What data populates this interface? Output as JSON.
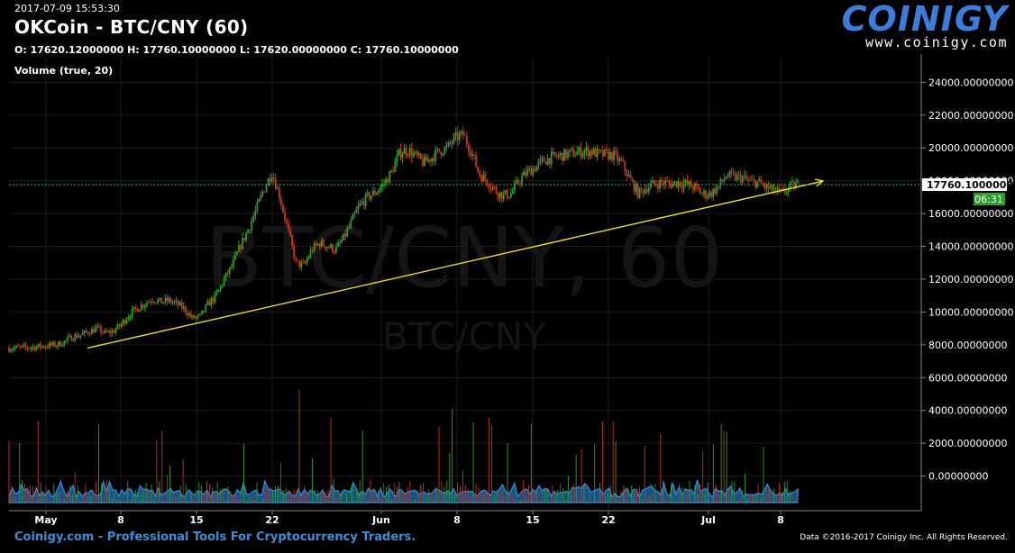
{
  "header": {
    "timestamp": "2017-07-09 15:53:30",
    "title": "OKCoin - BTC/CNY (60)",
    "ohlc": "O: 17620.12000000 H: 17760.10000000 L: 17620.00000000 C: 17760.10000000",
    "volume_label": "Volume (true, 20)"
  },
  "logo": {
    "name": "COINIGY",
    "url": "www.coinigy.com"
  },
  "watermark": {
    "main": "BTC/CNY, 60",
    "sub": "BTC/CNY"
  },
  "footer": {
    "left": "Coinigy.com - Professional Tools For Cryptocurrency Traders.",
    "right": "Data ©2016-2017 Coinigy Inc. All Rights Reserved."
  },
  "colors": {
    "up": "#2e9e2e",
    "down": "#d03020",
    "trendline": "#e8e030",
    "price_line": "#3db34a",
    "volume_fill": "#1f6fb0",
    "grid": "#1c1c1c"
  },
  "chart_data": {
    "type": "candlestick",
    "price_axis": {
      "ticks": [
        "24000.00000000",
        "22000.00000000",
        "20000.00000000",
        "18000.00000000",
        "16000.00000000",
        "14000.00000000",
        "12000.00000000",
        "10000.00000000",
        "8000.00000000",
        "6000.00000000",
        "4000.00000000",
        "2000.00000000",
        "0.00000000"
      ],
      "range": [
        -2000,
        25500
      ]
    },
    "time_axis": {
      "ticks": [
        "May",
        "8",
        "15",
        "22",
        "Jun",
        "8",
        "15",
        "22",
        "Jul",
        "8"
      ]
    },
    "current_price": {
      "label": "17760.10000000",
      "value": 17760.1
    },
    "countdown": "06:31",
    "price_path": [
      [
        0,
        7800
      ],
      [
        2,
        7820
      ],
      [
        4,
        7900
      ],
      [
        6,
        8000
      ],
      [
        7,
        8200
      ],
      [
        8,
        8500
      ],
      [
        9,
        8600
      ],
      [
        10,
        8800
      ],
      [
        11,
        9000
      ],
      [
        12,
        8700
      ],
      [
        13,
        8800
      ],
      [
        14,
        9200
      ],
      [
        15,
        9800
      ],
      [
        16,
        10200
      ],
      [
        17,
        10500
      ],
      [
        18,
        10800
      ],
      [
        19,
        10600
      ],
      [
        20,
        10700
      ],
      [
        21,
        10500
      ],
      [
        22,
        10200
      ],
      [
        23,
        9600
      ],
      [
        24,
        9700
      ],
      [
        25,
        10500
      ],
      [
        26,
        11000
      ],
      [
        27,
        12000
      ],
      [
        28,
        12800
      ],
      [
        29,
        14000
      ],
      [
        30,
        15000
      ],
      [
        31,
        16200
      ],
      [
        32,
        17500
      ],
      [
        33,
        18500
      ],
      [
        34,
        17000
      ],
      [
        35,
        15000
      ],
      [
        36,
        13000
      ],
      [
        37,
        12800
      ],
      [
        38,
        13800
      ],
      [
        39,
        14200
      ],
      [
        40,
        14000
      ],
      [
        41,
        13800
      ],
      [
        42,
        14500
      ],
      [
        43,
        15500
      ],
      [
        44,
        16500
      ],
      [
        45,
        17000
      ],
      [
        46,
        17300
      ],
      [
        47,
        17800
      ],
      [
        48,
        18500
      ],
      [
        49,
        19700
      ],
      [
        50,
        19900
      ],
      [
        51,
        19500
      ],
      [
        52,
        19100
      ],
      [
        53,
        19400
      ],
      [
        54,
        19800
      ],
      [
        55,
        20000
      ],
      [
        56,
        20600
      ],
      [
        57,
        20800
      ],
      [
        58,
        19800
      ],
      [
        59,
        18400
      ],
      [
        60,
        18000
      ],
      [
        61,
        17400
      ],
      [
        62,
        17100
      ],
      [
        63,
        17200
      ],
      [
        64,
        18000
      ],
      [
        65,
        18500
      ],
      [
        66,
        18800
      ],
      [
        67,
        19200
      ],
      [
        68,
        19400
      ],
      [
        69,
        19500
      ],
      [
        70,
        19600
      ],
      [
        71,
        19700
      ],
      [
        72,
        19800
      ],
      [
        73,
        19800
      ],
      [
        74,
        19600
      ],
      [
        75,
        19600
      ],
      [
        76,
        19500
      ],
      [
        77,
        19000
      ],
      [
        78,
        18000
      ],
      [
        79,
        17200
      ],
      [
        80,
        17600
      ],
      [
        81,
        17800
      ],
      [
        82,
        17900
      ],
      [
        83,
        17800
      ],
      [
        84,
        17900
      ],
      [
        85,
        17800
      ],
      [
        86,
        17600
      ],
      [
        87,
        17200
      ],
      [
        88,
        17200
      ],
      [
        89,
        17600
      ],
      [
        90,
        18300
      ],
      [
        91,
        18200
      ],
      [
        92,
        18200
      ],
      [
        93,
        17900
      ],
      [
        94,
        17900
      ],
      [
        95,
        17600
      ],
      [
        96,
        17400
      ],
      [
        97,
        17200
      ],
      [
        98,
        17600
      ],
      [
        99,
        17760
      ]
    ],
    "trendline": [
      [
        12,
        7800
      ],
      [
        114,
        17100
      ]
    ]
  }
}
